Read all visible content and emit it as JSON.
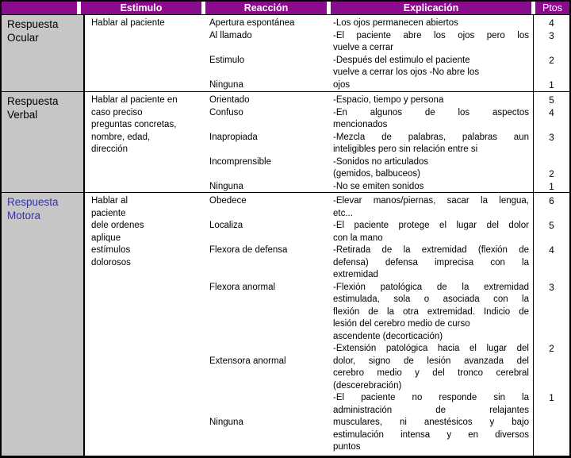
{
  "colors": {
    "header_bg": "#8C0A8C",
    "header_text": "#FFFFFF",
    "label_bg": "#C6C6C6",
    "border": "#000000",
    "body_text": "#000000",
    "motora_label_text": "#3333A6"
  },
  "header": {
    "columns": [
      "",
      "Estimulo",
      "Reacción",
      "Explicación",
      "Ptos"
    ]
  },
  "sections": [
    {
      "id": "ocular",
      "label": "Respuesta Ocular",
      "label_color": "#000000",
      "estimulo_lines": [
        "Hablar al paciente"
      ],
      "rows": [
        {
          "r": "Apertura espontánea",
          "e": "-Los ojos permanecen abiertos",
          "p": "4"
        },
        {
          "r": "Al llamado",
          "e": "-El paciente abre los ojos pero los",
          "p": "3",
          "j": 1
        },
        {
          "r": "",
          "e": "vuelve a cerrar",
          "p": ""
        },
        {
          "r": "Estimulo",
          "e": "-Después del estimulo el paciente",
          "p": "2"
        },
        {
          "r": "",
          "e": "vuelve a cerrar los ojos -No abre los",
          "p": ""
        },
        {
          "r": "Ninguna",
          "e": "ojos",
          "p": "1"
        }
      ]
    },
    {
      "id": "verbal",
      "label": "Respuesta Verbal",
      "label_color": "#000000",
      "estimulo_lines": [
        "Hablar al paciente en",
        "caso preciso",
        "preguntas concretas,",
        "nombre, edad,",
        "dirección"
      ],
      "rows": [
        {
          "r": "Orientado",
          "e": "-Espacio, tiempo y persona",
          "p": "5"
        },
        {
          "r": "Confuso",
          "e": "-En algunos de los aspectos",
          "p": "4",
          "j": 1
        },
        {
          "r": "",
          "e": "mencionados",
          "p": ""
        },
        {
          "r": "Inapropiada",
          "e": "-Mezcla de palabras, palabras aun",
          "p": "3",
          "j": 1
        },
        {
          "r": "",
          "e": "inteligibles pero sin relación entre si",
          "p": ""
        },
        {
          "r": "Incomprensible",
          "e": "-Sonidos no articulados",
          "p": ""
        },
        {
          "r": "",
          "e": "(gemidos, balbuceos)",
          "p": "2"
        },
        {
          "r": "Ninguna",
          "e": "-No se emiten sonidos",
          "p": "1"
        }
      ]
    },
    {
      "id": "motora",
      "label": "Respuesta Motora",
      "label_color": "#3333A6",
      "estimulo_lines": [
        "Hablar al",
        "paciente",
        "dele ordenes",
        "aplique",
        "estímulos",
        "dolorosos"
      ],
      "rows": [
        {
          "r": "Obedece",
          "e": "-Elevar manos/piernas, sacar la lengua,",
          "p": "6",
          "j": 1
        },
        {
          "r": "",
          "e": "etc...",
          "p": ""
        },
        {
          "r": "Localiza",
          "e": "-El paciente protege el lugar del dolor",
          "p": "5",
          "j": 1
        },
        {
          "r": "",
          "e": "con la mano",
          "p": ""
        },
        {
          "r": "Flexora de defensa",
          "e": "-Retirada de la extremidad (flexión de",
          "p": "4",
          "j": 1
        },
        {
          "r": "",
          "e": "defensa) defensa imprecisa con la",
          "p": "",
          "j": 1
        },
        {
          "r": "",
          "e": "extremidad",
          "p": ""
        },
        {
          "r": "Flexora anormal",
          "e": "-Flexión patológica de la extremidad",
          "p": "3",
          "j": 1
        },
        {
          "r": "",
          "e": "estimulada, sola o asociada con la",
          "p": "",
          "j": 1
        },
        {
          "r": "",
          "e": "flexión de la otra extremidad. Indicio de",
          "p": "",
          "j": 1
        },
        {
          "r": "",
          "e": "lesión del cerebro medio de curso",
          "p": ""
        },
        {
          "r": "",
          "e": "ascendente (decorticación)",
          "p": ""
        },
        {
          "r": "",
          "e": "-Extensión patológica hacia el lugar del",
          "p": "2",
          "j": 1
        },
        {
          "r": "Extensora anormal",
          "e": "dolor, signo de lesión avanzada del",
          "p": "",
          "j": 1
        },
        {
          "r": "",
          "e": "cerebro medio y del tronco cerebral",
          "p": "",
          "j": 1
        },
        {
          "r": "",
          "e": "(descerebración)",
          "p": ""
        },
        {
          "r": "",
          "e": "-El paciente no responde sin la",
          "p": "1",
          "j": 1
        },
        {
          "r": "",
          "e": "administración de relajantes",
          "p": "",
          "j": 1
        },
        {
          "r": "Ninguna",
          "e": "musculares, ni anestésicos y bajo",
          "p": "",
          "j": 1
        },
        {
          "r": "",
          "e": "estimulación intensa y en diversos",
          "p": "",
          "j": 1
        },
        {
          "r": "",
          "e": "puntos",
          "p": ""
        }
      ]
    }
  ]
}
